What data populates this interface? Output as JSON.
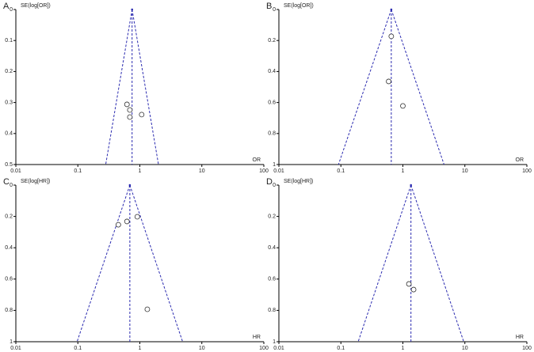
{
  "chart_data": [
    {
      "type": "scatter",
      "panel_label": "A",
      "y_label": "SE(log[OR])",
      "x_label": "OR",
      "x": [
        0.62,
        0.69,
        0.69,
        1.07
      ],
      "y": [
        0.306,
        0.324,
        0.347,
        0.339
      ],
      "xlim": [
        0.01,
        100
      ],
      "ylim": [
        0,
        0.5
      ],
      "xticks": [
        0.01,
        0.1,
        1,
        10,
        100
      ],
      "yticks": [
        0,
        0.1,
        0.2,
        0.3,
        0.4,
        0.5
      ],
      "log_x": true,
      "y_inverted": true,
      "pooled_estimate": 0.75,
      "color": "#2b2bb0"
    },
    {
      "type": "scatter",
      "panel_label": "B",
      "y_label": "SE(log[OR])",
      "x_label": "OR",
      "x": [
        0.65,
        0.59,
        1.0
      ],
      "y": [
        0.173,
        0.464,
        0.622
      ],
      "xlim": [
        0.01,
        100
      ],
      "ylim": [
        0,
        1
      ],
      "xticks": [
        0.01,
        0.1,
        1,
        10,
        100
      ],
      "yticks": [
        0,
        0.2,
        0.4,
        0.6,
        0.8,
        1
      ],
      "log_x": true,
      "y_inverted": true,
      "pooled_estimate": 0.65,
      "color": "#2b2bb0"
    },
    {
      "type": "scatter",
      "panel_label": "C",
      "y_label": "SE(log[HR])",
      "x_label": "HR",
      "x": [
        0.45,
        0.62,
        0.91,
        1.32
      ],
      "y": [
        0.253,
        0.232,
        0.202,
        0.793
      ],
      "xlim": [
        0.01,
        100
      ],
      "ylim": [
        0,
        1
      ],
      "xticks": [
        0.01,
        0.1,
        1,
        10,
        100
      ],
      "yticks": [
        0,
        0.2,
        0.4,
        0.6,
        0.8,
        1
      ],
      "log_x": true,
      "y_inverted": true,
      "pooled_estimate": 0.69,
      "color": "#2b2bb0"
    },
    {
      "type": "scatter",
      "panel_label": "D",
      "y_label": "SE(log[HR])",
      "x_label": "HR",
      "x": [
        1.25,
        1.49
      ],
      "y": [
        0.631,
        0.667
      ],
      "xlim": [
        0.01,
        100
      ],
      "ylim": [
        0,
        1
      ],
      "xticks": [
        0.01,
        0.1,
        1,
        10,
        100
      ],
      "yticks": [
        0,
        0.2,
        0.4,
        0.6,
        0.8,
        1
      ],
      "log_x": true,
      "y_inverted": true,
      "pooled_estimate": 1.35,
      "color": "#2b2bb0"
    }
  ]
}
